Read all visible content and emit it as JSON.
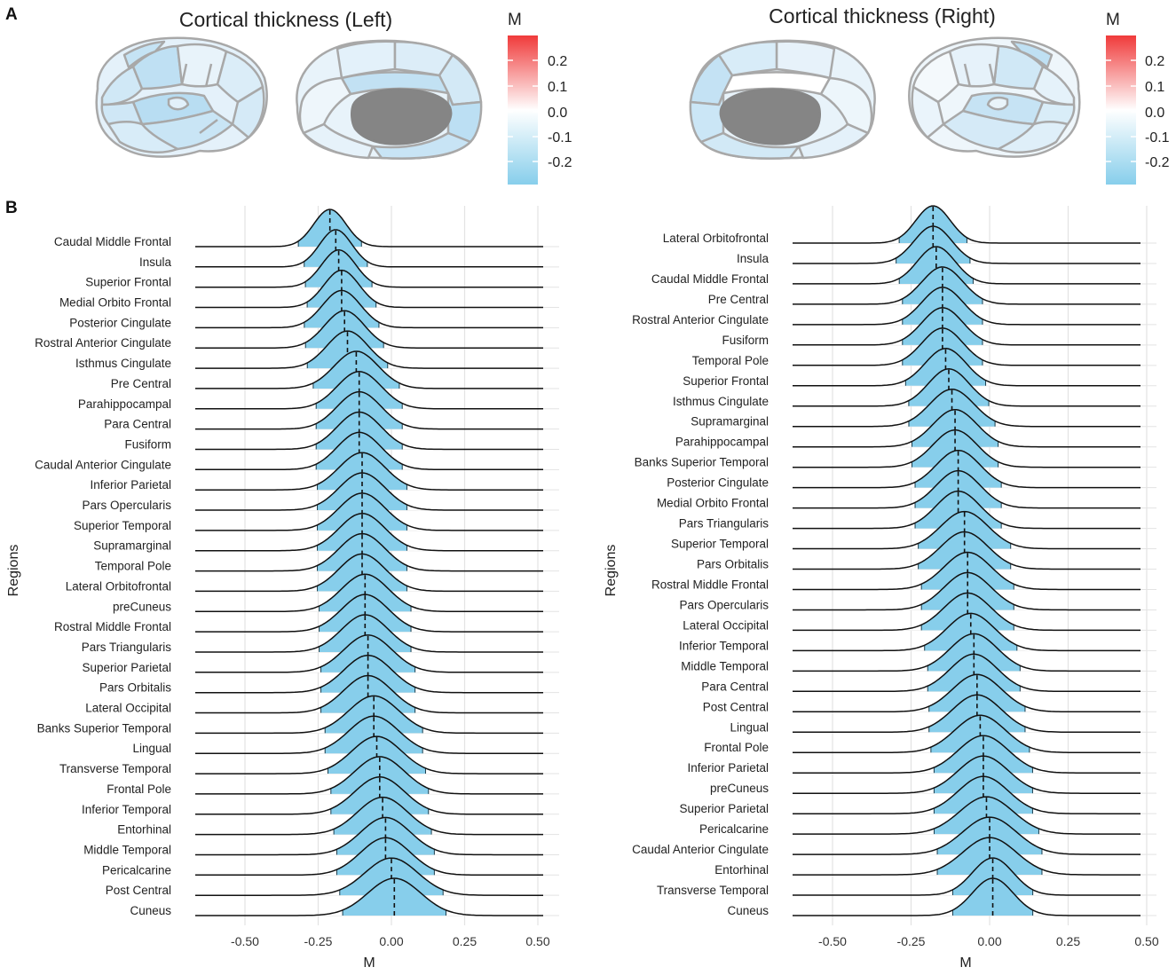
{
  "panel_labels": [
    "A",
    "B"
  ],
  "brains": {
    "left_title": "Cortical thickness (Left)",
    "right_title": "Cortical thickness (Right)",
    "legend_title": "M",
    "legend_ticks": [
      "0.2",
      "0.1",
      "0.0",
      "-0.1",
      "-0.2"
    ],
    "colors": {
      "high": "#f03a3a",
      "mid": "#ffffff",
      "low": "#87ceeb",
      "subcortical": "#858585",
      "outline": "#a8a8a8"
    }
  },
  "chart_data": [
    {
      "type": "ridgeline",
      "title": "",
      "xlabel": "M",
      "ylabel": "Regions",
      "xlim": [
        -0.67,
        0.52
      ],
      "xticks": [
        "-0.50",
        "-0.25",
        "0.00",
        "0.25",
        "0.50"
      ],
      "fill_color": "#87ceeb",
      "regions": [
        "Caudal Middle Frontal",
        "Insula",
        "Superior Frontal",
        "Medial Orbito Frontal",
        "Posterior Cingulate",
        "Rostral Anterior Cingulate",
        "Isthmus Cingulate",
        "Pre Central",
        "Parahippocampal",
        "Para Central",
        "Fusiform",
        "Caudal Anterior Cingulate",
        "Inferior Parietal",
        "Pars Opercularis",
        "Superior Temporal",
        "Supramarginal",
        "Temporal Pole",
        "Lateral Orbitofrontal",
        "preCuneus",
        "Rostral Middle Frontal",
        "Pars Triangularis",
        "Superior Parietal",
        "Pars Orbitalis",
        "Lateral Occipital",
        "Banks Superior Temporal",
        "Lingual",
        "Transverse Temporal",
        "Frontal Pole",
        "Inferior Temporal",
        "Entorhinal",
        "Middle Temporal",
        "Pericalcarine",
        "Post Central",
        "Cuneus"
      ],
      "means": [
        -0.21,
        -0.19,
        -0.18,
        -0.17,
        -0.17,
        -0.16,
        -0.15,
        -0.12,
        -0.11,
        -0.11,
        -0.11,
        -0.11,
        -0.1,
        -0.1,
        -0.1,
        -0.1,
        -0.1,
        -0.1,
        -0.09,
        -0.09,
        -0.09,
        -0.08,
        -0.08,
        -0.08,
        -0.06,
        -0.06,
        -0.05,
        -0.04,
        -0.04,
        -0.03,
        -0.02,
        -0.02,
        0.0,
        0.01
      ],
      "sd": [
        0.055,
        0.055,
        0.058,
        0.06,
        0.065,
        0.068,
        0.07,
        0.075,
        0.075,
        0.075,
        0.075,
        0.075,
        0.078,
        0.078,
        0.078,
        0.078,
        0.078,
        0.078,
        0.08,
        0.08,
        0.08,
        0.082,
        0.082,
        0.082,
        0.085,
        0.085,
        0.085,
        0.085,
        0.085,
        0.085,
        0.085,
        0.085,
        0.09,
        0.09
      ]
    },
    {
      "type": "ridgeline",
      "title": "",
      "xlabel": "M",
      "ylabel": "Regions",
      "xlim": [
        -0.63,
        0.48
      ],
      "xticks": [
        "-0.50",
        "-0.25",
        "0.00",
        "0.25",
        "0.50"
      ],
      "fill_color": "#87ceeb",
      "regions": [
        "Lateral Orbitofrontal",
        "Insula",
        "Caudal Middle Frontal",
        "Pre Central",
        "Rostral Anterior Cingulate",
        "Fusiform",
        "Temporal Pole",
        "Superior Frontal",
        "Isthmus Cingulate",
        "Supramarginal",
        "Parahippocampal",
        "Banks Superior Temporal",
        "Posterior Cingulate",
        "Medial Orbito Frontal",
        "Pars Triangularis",
        "Superior Temporal",
        "Pars Orbitalis",
        "Rostral Middle Frontal",
        "Pars Opercularis",
        "Lateral Occipital",
        "Inferior Temporal",
        "Middle Temporal",
        "Para Central",
        "Post Central",
        "Lingual",
        "Frontal Pole",
        "Inferior Parietal",
        "preCuneus",
        "Superior Parietal",
        "Pericalcarine",
        "Caudal Anterior Cingulate",
        "Entorhinal",
        "Transverse Temporal",
        "Cuneus"
      ],
      "means": [
        -0.18,
        -0.18,
        -0.17,
        -0.15,
        -0.15,
        -0.15,
        -0.15,
        -0.14,
        -0.13,
        -0.12,
        -0.11,
        -0.11,
        -0.1,
        -0.1,
        -0.1,
        -0.08,
        -0.08,
        -0.07,
        -0.07,
        -0.07,
        -0.06,
        -0.05,
        -0.05,
        -0.04,
        -0.04,
        -0.03,
        -0.02,
        -0.02,
        -0.02,
        -0.01,
        0.0,
        0.0,
        0.01,
        0.01
      ],
      "sd": [
        0.055,
        0.06,
        0.06,
        0.065,
        0.065,
        0.065,
        0.065,
        0.065,
        0.065,
        0.07,
        0.07,
        0.07,
        0.07,
        0.07,
        0.07,
        0.075,
        0.075,
        0.075,
        0.075,
        0.075,
        0.075,
        0.075,
        0.075,
        0.078,
        0.078,
        0.08,
        0.08,
        0.08,
        0.08,
        0.085,
        0.085,
        0.085,
        0.065,
        0.065
      ]
    }
  ]
}
